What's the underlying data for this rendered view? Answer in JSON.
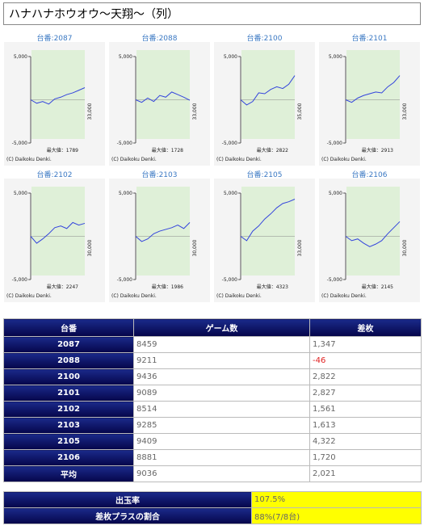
{
  "header": {
    "title": "ハナハナホウオウ〜天翔〜（列）"
  },
  "graph_axis": {
    "ylim": [
      -5000,
      5000
    ],
    "yticks": [
      {
        "value": 5000,
        "label": "5,000"
      },
      {
        "value": -5000,
        "label": "-5,000"
      }
    ]
  },
  "graphs": [
    {
      "label": "台番:2087",
      "x_end": "33,000",
      "max": "最大値：1789",
      "copyright": "(C) Daikoku Denki.",
      "points": [
        0,
        -400,
        -200,
        -500,
        100,
        300,
        600,
        800,
        1100,
        1400
      ]
    },
    {
      "label": "台番:2088",
      "x_end": "33,000",
      "max": "最大値：1728",
      "copyright": "(C) Daikoku Denki.",
      "points": [
        0,
        -300,
        200,
        -200,
        500,
        300,
        900,
        600,
        300,
        -50
      ]
    },
    {
      "label": "台番:2100",
      "x_end": "35,000",
      "max": "最大値：2822",
      "copyright": "(C) Daikoku Denki.",
      "points": [
        0,
        -600,
        -200,
        800,
        700,
        1200,
        1500,
        1300,
        1800,
        2800
      ]
    },
    {
      "label": "台番:2101",
      "x_end": "33,000",
      "max": "最大値：2913",
      "copyright": "(C) Daikoku Denki.",
      "points": [
        0,
        -300,
        200,
        500,
        700,
        900,
        800,
        1500,
        2000,
        2800
      ]
    },
    {
      "label": "台番:2102",
      "x_end": "30,000",
      "max": "最大値：2247",
      "copyright": "(C) Daikoku Denki.",
      "points": [
        0,
        -800,
        -300,
        300,
        1000,
        1200,
        900,
        1600,
        1300,
        1500
      ]
    },
    {
      "label": "台番:2103",
      "x_end": "30,000",
      "max": "最大値：1986",
      "copyright": "(C) Daikoku Denki.",
      "points": [
        0,
        -600,
        -300,
        300,
        600,
        800,
        1000,
        1300,
        900,
        1600
      ]
    },
    {
      "label": "台番:2105",
      "x_end": "33,000",
      "max": "最大値：4323",
      "copyright": "(C) Daikoku Denki.",
      "points": [
        0,
        -500,
        600,
        1200,
        2000,
        2600,
        3300,
        3800,
        4000,
        4300
      ]
    },
    {
      "label": "台番:2106",
      "x_end": "30,000",
      "max": "最大値：2145",
      "copyright": "(C) Daikoku Denki.",
      "points": [
        0,
        -500,
        -300,
        -800,
        -1200,
        -900,
        -500,
        300,
        1000,
        1700
      ]
    }
  ],
  "table": {
    "headers": [
      "台番",
      "ゲーム数",
      "差枚"
    ],
    "rows": [
      [
        "2087",
        "8459",
        "1,347"
      ],
      [
        "2088",
        "9211",
        "-46"
      ],
      [
        "2100",
        "9436",
        "2,822"
      ],
      [
        "2101",
        "9089",
        "2,827"
      ],
      [
        "2102",
        "8514",
        "1,561"
      ],
      [
        "2103",
        "9285",
        "1,613"
      ],
      [
        "2105",
        "9409",
        "4,322"
      ],
      [
        "2106",
        "8881",
        "1,720"
      ],
      [
        "平均",
        "9036",
        "2,021"
      ]
    ]
  },
  "summary": {
    "rows": [
      [
        "出玉率",
        "107.5%"
      ],
      [
        "差枚プラスの割合",
        "88%(7/8台)"
      ]
    ]
  }
}
